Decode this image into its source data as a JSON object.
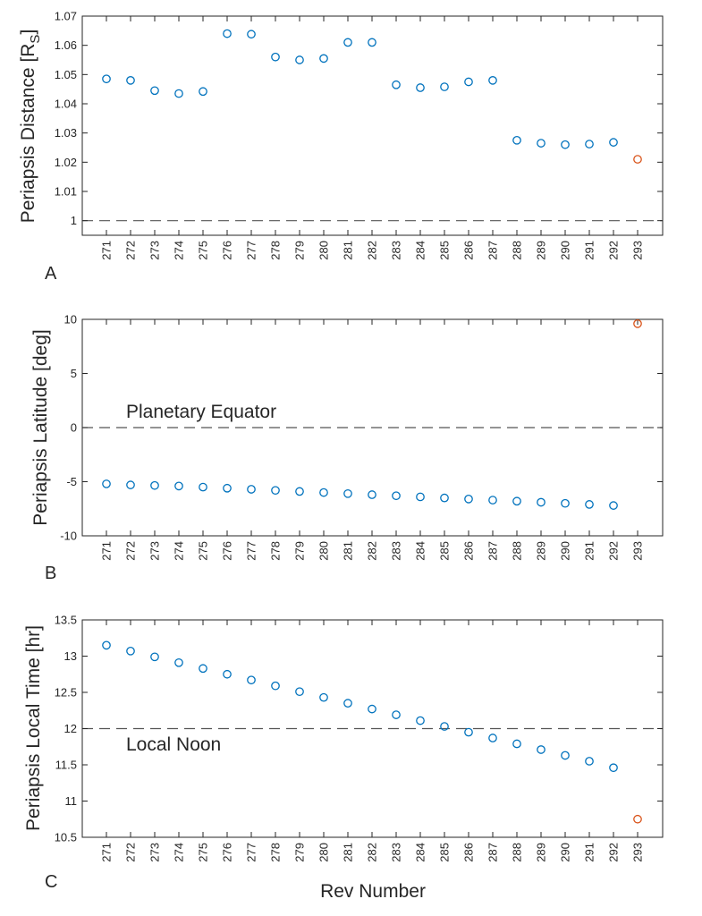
{
  "colors": {
    "series": "#0072BD",
    "highlight": "#D95319",
    "axis": "#262626",
    "refline": "#555555"
  },
  "chart_data": [
    {
      "type": "scatter",
      "panel_label": "A",
      "ylabel": "Periapsis Distance [R",
      "ylabel_sub": "S",
      "ylabel_end": "]",
      "xlabel": "",
      "ylim": [
        0.995,
        1.07
      ],
      "yticks": [
        1,
        1.01,
        1.02,
        1.03,
        1.04,
        1.05,
        1.06,
        1.07
      ],
      "ytick_labels": [
        "1",
        "1.01",
        "1.02",
        "1.03",
        "1.04",
        "1.05",
        "1.06",
        "1.07"
      ],
      "categories": [
        "271",
        "272",
        "273",
        "274",
        "275",
        "276",
        "277",
        "278",
        "279",
        "280",
        "281",
        "282",
        "283",
        "284",
        "285",
        "286",
        "287",
        "288",
        "289",
        "290",
        "291",
        "292",
        "293"
      ],
      "values": [
        1.0485,
        1.048,
        1.0445,
        1.0435,
        1.0442,
        1.064,
        1.0638,
        1.056,
        1.055,
        1.0555,
        1.061,
        1.061,
        1.0465,
        1.0455,
        1.0458,
        1.0475,
        1.048,
        1.0275,
        1.0265,
        1.026,
        1.0262,
        1.0268,
        1.021
      ],
      "highlight_index": 22,
      "refline": {
        "y": 1,
        "label": ""
      }
    },
    {
      "type": "scatter",
      "panel_label": "B",
      "ylabel": "Periapsis Latitude [deg]",
      "xlabel": "",
      "ylim": [
        -10,
        10
      ],
      "yticks": [
        -10,
        -5,
        0,
        5,
        10
      ],
      "ytick_labels": [
        "-10",
        "-5",
        "0",
        "5",
        "10"
      ],
      "categories": [
        "271",
        "272",
        "273",
        "274",
        "275",
        "276",
        "277",
        "278",
        "279",
        "280",
        "281",
        "282",
        "283",
        "284",
        "285",
        "286",
        "287",
        "288",
        "289",
        "290",
        "291",
        "292",
        "293"
      ],
      "values": [
        -5.2,
        -5.3,
        -5.35,
        -5.4,
        -5.5,
        -5.6,
        -5.7,
        -5.8,
        -5.9,
        -6.0,
        -6.1,
        -6.2,
        -6.3,
        -6.4,
        -6.5,
        -6.6,
        -6.7,
        -6.8,
        -6.9,
        -7.0,
        -7.1,
        -7.2,
        9.6
      ],
      "highlight_index": 22,
      "refline": {
        "y": 0,
        "label": "Planetary Equator"
      }
    },
    {
      "type": "scatter",
      "panel_label": "C",
      "ylabel": "Periapsis Local Time [hr]",
      "xlabel": "Rev Number",
      "ylim": [
        10.5,
        13.5
      ],
      "yticks": [
        10.5,
        11,
        11.5,
        12,
        12.5,
        13,
        13.5
      ],
      "ytick_labels": [
        "10.5",
        "11",
        "11.5",
        "12",
        "12.5",
        "13",
        "13.5"
      ],
      "categories": [
        "271",
        "272",
        "273",
        "274",
        "275",
        "276",
        "277",
        "278",
        "279",
        "280",
        "281",
        "282",
        "283",
        "284",
        "285",
        "286",
        "287",
        "288",
        "289",
        "290",
        "291",
        "292",
        "293"
      ],
      "values": [
        13.15,
        13.07,
        12.99,
        12.91,
        12.83,
        12.75,
        12.67,
        12.59,
        12.51,
        12.43,
        12.35,
        12.27,
        12.19,
        12.11,
        12.03,
        11.95,
        11.87,
        11.79,
        11.71,
        11.63,
        11.55,
        11.46,
        10.75
      ],
      "highlight_index": 22,
      "refline": {
        "y": 12,
        "label": "Local Noon"
      }
    }
  ]
}
